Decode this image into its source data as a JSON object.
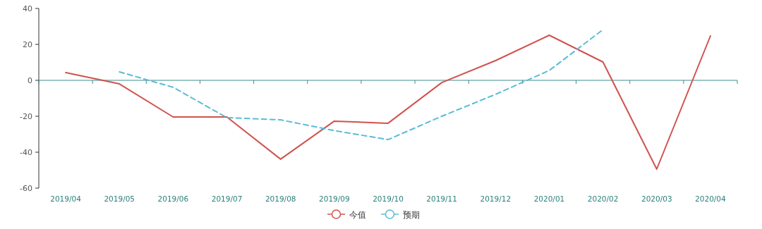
{
  "chart_data": {
    "type": "line",
    "categories": [
      "2019/04",
      "2019/05",
      "2019/06",
      "2019/07",
      "2019/08",
      "2019/09",
      "2019/10",
      "2019/11",
      "2019/12",
      "2020/01",
      "2020/02",
      "2020/03",
      "2020/04"
    ],
    "series": [
      {
        "name": "今值",
        "color": "#d0524e",
        "line_style": "solid",
        "values": [
          4.3,
          -2,
          -20.4,
          -20.4,
          -43.9,
          -22.7,
          -23.9,
          -1.2,
          11,
          25.1,
          10.2,
          -49.4,
          24.7
        ]
      },
      {
        "name": "预期",
        "color": "#5bbcd6",
        "line_style": "dashed",
        "values": [
          null,
          4.7,
          -3.9,
          -20.8,
          -22,
          -28,
          -33,
          -20,
          -7.8,
          5.5,
          28.2,
          null,
          null
        ]
      }
    ],
    "ref_lines": [
      {
        "axis": "y",
        "value": 0,
        "color": "#3f8c8c",
        "line_style": "solid"
      }
    ],
    "ylim": [
      -60,
      40
    ],
    "yticks": [
      -60,
      -40,
      -20,
      0,
      20,
      40
    ],
    "grid": false,
    "legend": "bottom"
  }
}
